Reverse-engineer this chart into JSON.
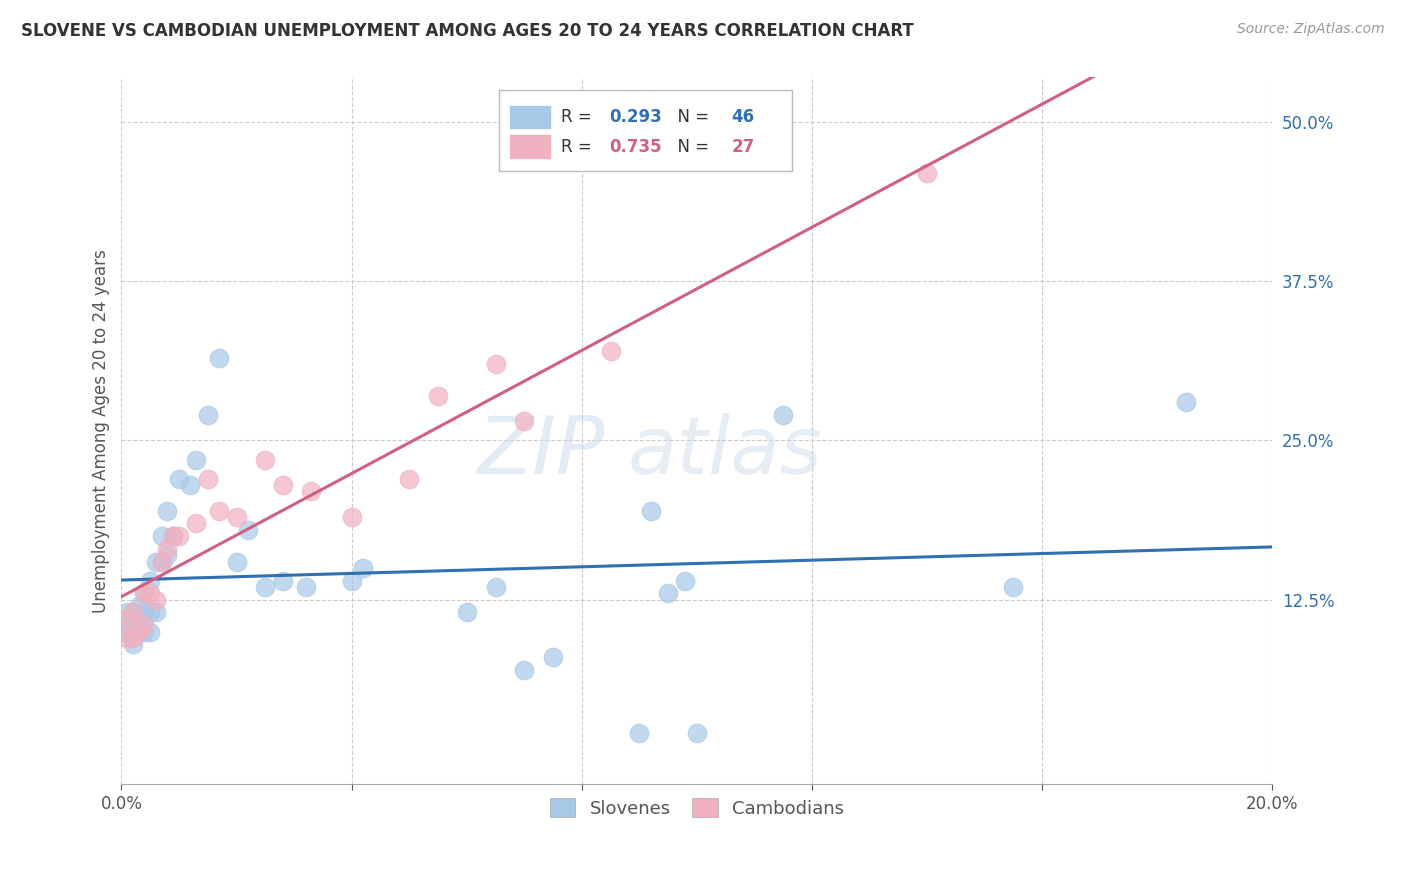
{
  "title": "SLOVENE VS CAMBODIAN UNEMPLOYMENT AMONG AGES 20 TO 24 YEARS CORRELATION CHART",
  "source": "Source: ZipAtlas.com",
  "ylabel": "Unemployment Among Ages 20 to 24 years",
  "watermark": "ZIPatlas",
  "xlim": [
    0.0,
    0.2
  ],
  "ylim": [
    -0.02,
    0.535
  ],
  "xticks": [
    0.0,
    0.04,
    0.08,
    0.12,
    0.16,
    0.2
  ],
  "xticklabels": [
    "0.0%",
    "",
    "",
    "",
    "",
    "20.0%"
  ],
  "yticks_right": [
    0.125,
    0.25,
    0.375,
    0.5
  ],
  "ytick_labels_right": [
    "12.5%",
    "25.0%",
    "37.5%",
    "50.0%"
  ],
  "slovene_R": "0.293",
  "slovene_N": "46",
  "cambodian_R": "0.735",
  "cambodian_N": "27",
  "slovene_color": "#a8c8e8",
  "slovene_line_color": "#3070b0",
  "cambodian_color": "#f0b0c0",
  "cambodian_line_color": "#d06080",
  "slovene_x": [
    0.001,
    0.001,
    0.001,
    0.002,
    0.002,
    0.002,
    0.003,
    0.003,
    0.003,
    0.004,
    0.004,
    0.004,
    0.005,
    0.005,
    0.005,
    0.006,
    0.006,
    0.007,
    0.007,
    0.008,
    0.008,
    0.009,
    0.01,
    0.012,
    0.013,
    0.015,
    0.017,
    0.02,
    0.022,
    0.025,
    0.028,
    0.032,
    0.04,
    0.042,
    0.06,
    0.065,
    0.07,
    0.075,
    0.09,
    0.092,
    0.095,
    0.098,
    0.1,
    0.115,
    0.155,
    0.185
  ],
  "slovene_y": [
    0.1,
    0.105,
    0.115,
    0.09,
    0.1,
    0.115,
    0.1,
    0.11,
    0.12,
    0.1,
    0.115,
    0.13,
    0.1,
    0.115,
    0.14,
    0.115,
    0.155,
    0.155,
    0.175,
    0.16,
    0.195,
    0.175,
    0.22,
    0.215,
    0.235,
    0.27,
    0.315,
    0.155,
    0.18,
    0.135,
    0.14,
    0.135,
    0.14,
    0.15,
    0.115,
    0.135,
    0.07,
    0.08,
    0.02,
    0.195,
    0.13,
    0.14,
    0.02,
    0.27,
    0.135,
    0.28
  ],
  "cambodian_x": [
    0.001,
    0.001,
    0.002,
    0.002,
    0.003,
    0.004,
    0.004,
    0.005,
    0.006,
    0.007,
    0.008,
    0.009,
    0.01,
    0.013,
    0.015,
    0.017,
    0.02,
    0.025,
    0.028,
    0.033,
    0.04,
    0.05,
    0.055,
    0.065,
    0.07,
    0.085,
    0.14
  ],
  "cambodian_y": [
    0.095,
    0.11,
    0.095,
    0.115,
    0.1,
    0.105,
    0.13,
    0.13,
    0.125,
    0.155,
    0.165,
    0.175,
    0.175,
    0.185,
    0.22,
    0.195,
    0.19,
    0.235,
    0.215,
    0.21,
    0.19,
    0.22,
    0.285,
    0.31,
    0.265,
    0.32,
    0.46
  ],
  "bottom_legend_slovene": "Slovenes",
  "bottom_legend_cambodian": "Cambodians"
}
